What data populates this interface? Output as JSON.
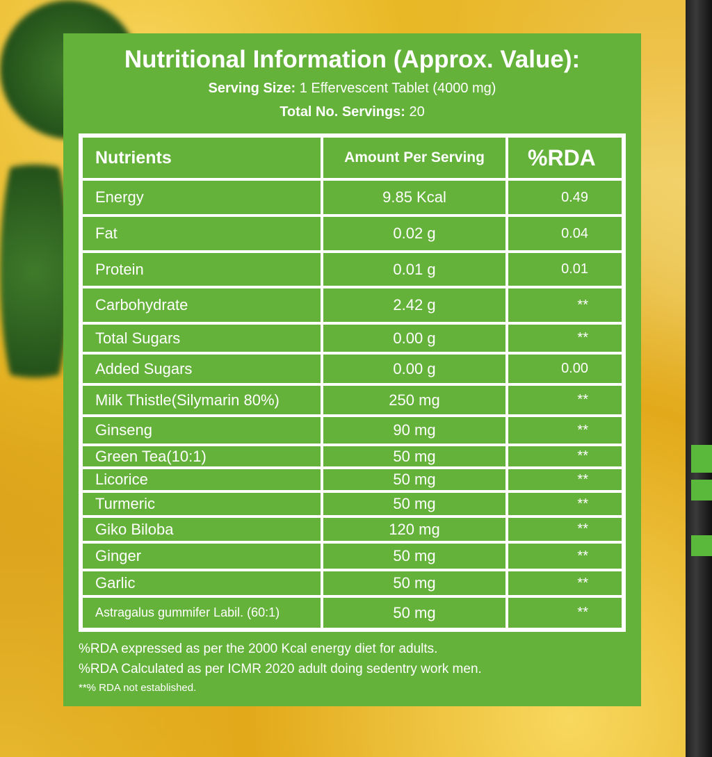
{
  "title": "Nutritional Information (Approx. Value):",
  "serving_size": {
    "label": "Serving Size:",
    "value": "1 Effervescent Tablet (4000 mg)"
  },
  "total_servings": {
    "label": "Total No. Servings:",
    "value": "20"
  },
  "table": {
    "headers": [
      "Nutrients",
      "Amount Per Serving",
      "%RDA"
    ],
    "rows": [
      {
        "nutrient": "Energy",
        "amount": "9.85 Kcal",
        "rda": "0.49"
      },
      {
        "nutrient": "Fat",
        "amount": "0.02 g",
        "rda": "0.04"
      },
      {
        "nutrient": "Protein",
        "amount": "0.01 g",
        "rda": "0.01"
      },
      {
        "nutrient": "Carbohydrate",
        "amount": "2.42 g",
        "rda": "**"
      },
      {
        "nutrient": "Total Sugars",
        "amount": "0.00 g",
        "rda": "**"
      },
      {
        "nutrient": "Added Sugars",
        "amount": "0.00 g",
        "rda": "0.00"
      },
      {
        "nutrient": "Milk Thistle(Silymarin 80%)",
        "amount": "250 mg",
        "rda": "**"
      },
      {
        "nutrient": "Ginseng",
        "amount": "90 mg",
        "rda": "**"
      },
      {
        "nutrient": "Green Tea(10:1)",
        "amount": "50 mg",
        "rda": "**"
      },
      {
        "nutrient": "Licorice",
        "amount": "50 mg",
        "rda": "**"
      },
      {
        "nutrient": "Turmeric",
        "amount": "50 mg",
        "rda": "**"
      },
      {
        "nutrient": "Giko Biloba",
        "amount": "120 mg",
        "rda": "**"
      },
      {
        "nutrient": "Ginger",
        "amount": "50 mg",
        "rda": "**"
      },
      {
        "nutrient": "Garlic",
        "amount": "50 mg",
        "rda": "**"
      },
      {
        "nutrient": "Astragalus gummifer Labil. (60:1)",
        "amount": "50 mg",
        "rda": "**"
      }
    ]
  },
  "footnotes": [
    "%RDA expressed as per the 2000 Kcal energy diet for adults.",
    "%RDA Calculated as per ICMR 2020 adult doing sedentry work men.",
    "**% RDA not established."
  ],
  "colors": {
    "panel": "#64b23a",
    "text": "#ffffff",
    "background": "#e7b52b"
  }
}
